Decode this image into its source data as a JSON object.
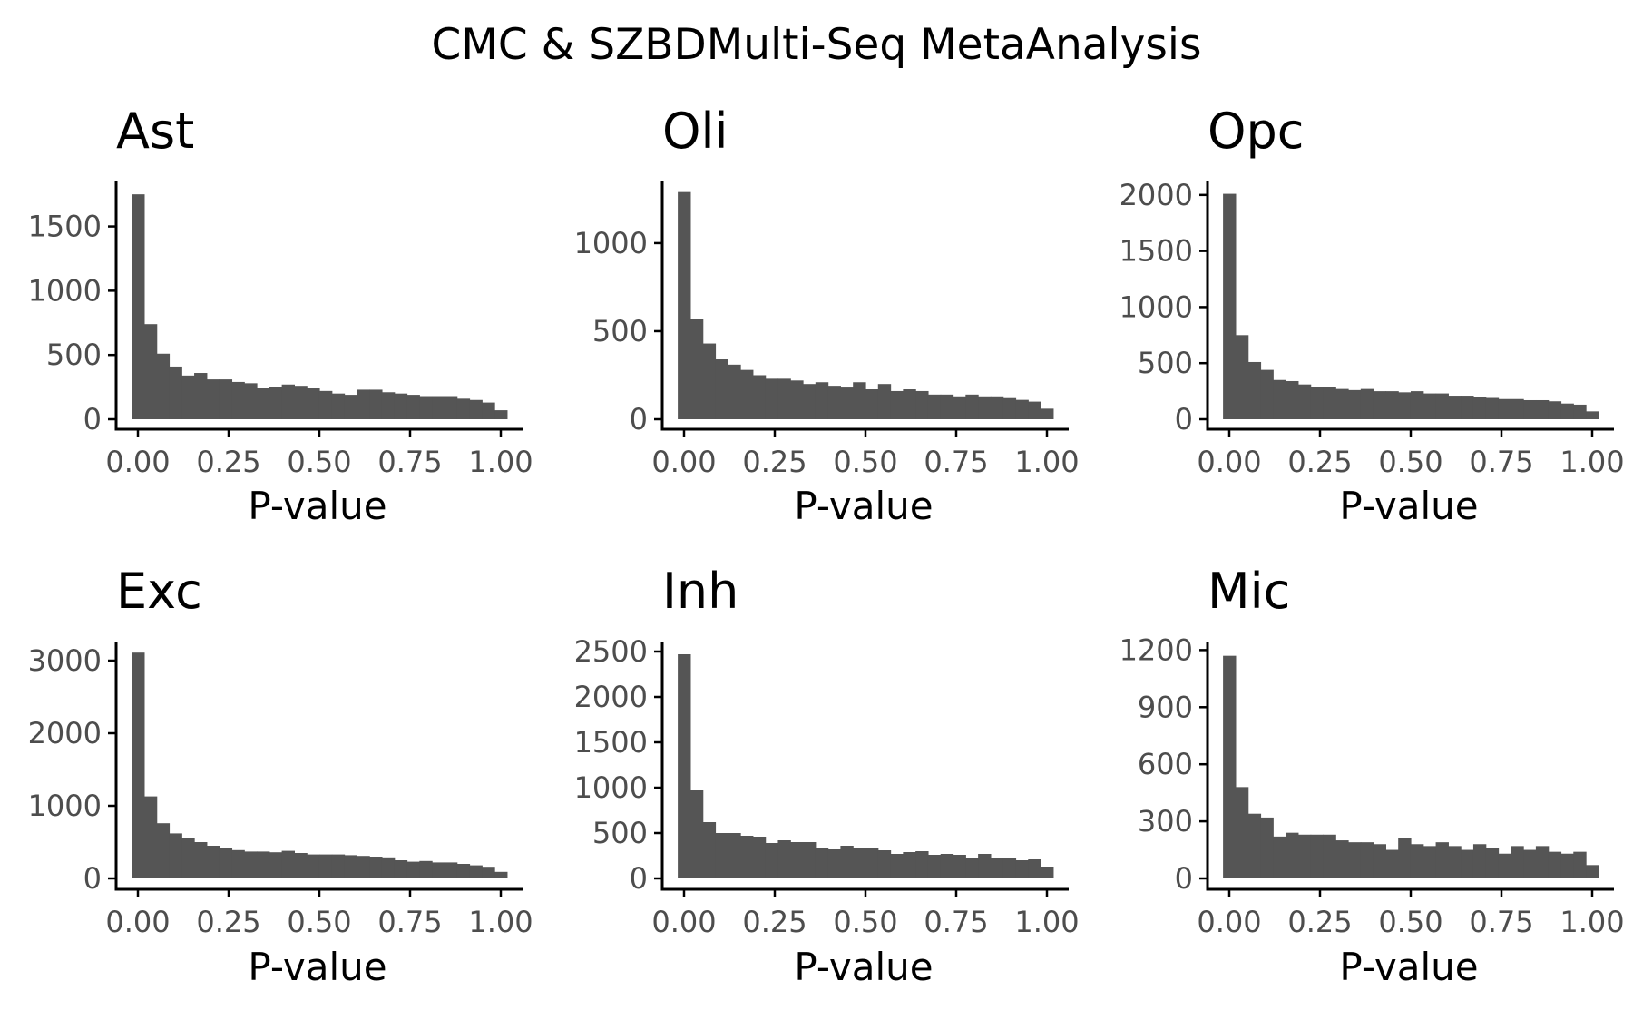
{
  "figure": {
    "title": "CMC & SZBDMulti-Seq MetaAnalysis"
  },
  "colors": {
    "bar": "#555555",
    "axis": "#000000",
    "tick_label": "#4d4d4d",
    "background": "#ffffff"
  },
  "chart_data": [
    {
      "type": "bar",
      "title": "Ast",
      "xlabel": "P-value",
      "ylabel": "",
      "xlim": [
        -0.04,
        1.06
      ],
      "ylim": [
        0,
        1850
      ],
      "xticks": [
        "0.00",
        "0.25",
        "0.50",
        "0.75",
        "1.00"
      ],
      "yticks": [
        0,
        500,
        1000,
        1500
      ],
      "bin_width": 0.03448,
      "bin_start": -0.01724,
      "values": [
        1750,
        740,
        510,
        410,
        340,
        360,
        310,
        310,
        290,
        280,
        240,
        250,
        270,
        260,
        240,
        220,
        200,
        190,
        230,
        230,
        210,
        200,
        190,
        180,
        180,
        180,
        160,
        150,
        130,
        70
      ]
    },
    {
      "type": "bar",
      "title": "Oli",
      "xlabel": "P-value",
      "ylabel": "",
      "xlim": [
        -0.04,
        1.06
      ],
      "ylim": [
        0,
        1350
      ],
      "xticks": [
        "0.00",
        "0.25",
        "0.50",
        "0.75",
        "1.00"
      ],
      "yticks": [
        0,
        500,
        1000
      ],
      "bin_width": 0.03448,
      "bin_start": -0.01724,
      "values": [
        1290,
        570,
        430,
        340,
        310,
        280,
        250,
        230,
        230,
        220,
        200,
        210,
        190,
        180,
        210,
        170,
        200,
        160,
        170,
        160,
        140,
        140,
        130,
        140,
        130,
        130,
        120,
        110,
        100,
        60
      ]
    },
    {
      "type": "bar",
      "title": "Opc",
      "xlabel": "P-value",
      "ylabel": "",
      "xlim": [
        -0.04,
        1.06
      ],
      "ylim": [
        0,
        2120
      ],
      "xticks": [
        "0.00",
        "0.25",
        "0.50",
        "0.75",
        "1.00"
      ],
      "yticks": [
        0,
        500,
        1000,
        1500,
        2000
      ],
      "bin_width": 0.03448,
      "bin_start": -0.01724,
      "values": [
        2010,
        750,
        510,
        440,
        350,
        340,
        310,
        290,
        290,
        270,
        260,
        270,
        250,
        250,
        240,
        250,
        230,
        230,
        210,
        210,
        200,
        190,
        180,
        180,
        170,
        170,
        160,
        140,
        130,
        70
      ]
    },
    {
      "type": "bar",
      "title": "Exc",
      "xlabel": "P-value",
      "ylabel": "",
      "xlim": [
        -0.04,
        1.06
      ],
      "ylim": [
        0,
        3250
      ],
      "xticks": [
        "0.00",
        "0.25",
        "0.50",
        "0.75",
        "1.00"
      ],
      "yticks": [
        0,
        1000,
        2000,
        3000
      ],
      "bin_width": 0.03448,
      "bin_start": -0.01724,
      "values": [
        3110,
        1130,
        760,
        620,
        560,
        500,
        450,
        420,
        390,
        370,
        370,
        360,
        380,
        350,
        330,
        330,
        330,
        320,
        310,
        300,
        290,
        250,
        230,
        240,
        220,
        220,
        200,
        180,
        160,
        90
      ]
    },
    {
      "type": "bar",
      "title": "Inh",
      "xlabel": "P-value",
      "ylabel": "",
      "xlim": [
        -0.04,
        1.06
      ],
      "ylim": [
        0,
        2600
      ],
      "xticks": [
        "0.00",
        "0.25",
        "0.50",
        "0.75",
        "1.00"
      ],
      "yticks": [
        0,
        500,
        1000,
        1500,
        2000,
        2500
      ],
      "bin_width": 0.03448,
      "bin_start": -0.01724,
      "values": [
        2470,
        970,
        620,
        500,
        500,
        470,
        460,
        390,
        420,
        400,
        400,
        340,
        320,
        360,
        340,
        330,
        310,
        270,
        290,
        300,
        260,
        270,
        260,
        230,
        270,
        220,
        220,
        200,
        210,
        130
      ]
    },
    {
      "type": "bar",
      "title": "Mic",
      "xlabel": "P-value",
      "ylabel": "",
      "xlim": [
        -0.04,
        1.06
      ],
      "ylim": [
        0,
        1240
      ],
      "xticks": [
        "0.00",
        "0.25",
        "0.50",
        "0.75",
        "1.00"
      ],
      "yticks": [
        0,
        300,
        600,
        900,
        1200
      ],
      "bin_width": 0.03448,
      "bin_start": -0.01724,
      "values": [
        1170,
        480,
        340,
        320,
        220,
        240,
        230,
        230,
        230,
        200,
        190,
        190,
        180,
        150,
        210,
        180,
        170,
        190,
        170,
        150,
        180,
        160,
        130,
        170,
        150,
        170,
        140,
        130,
        140,
        70
      ]
    }
  ]
}
